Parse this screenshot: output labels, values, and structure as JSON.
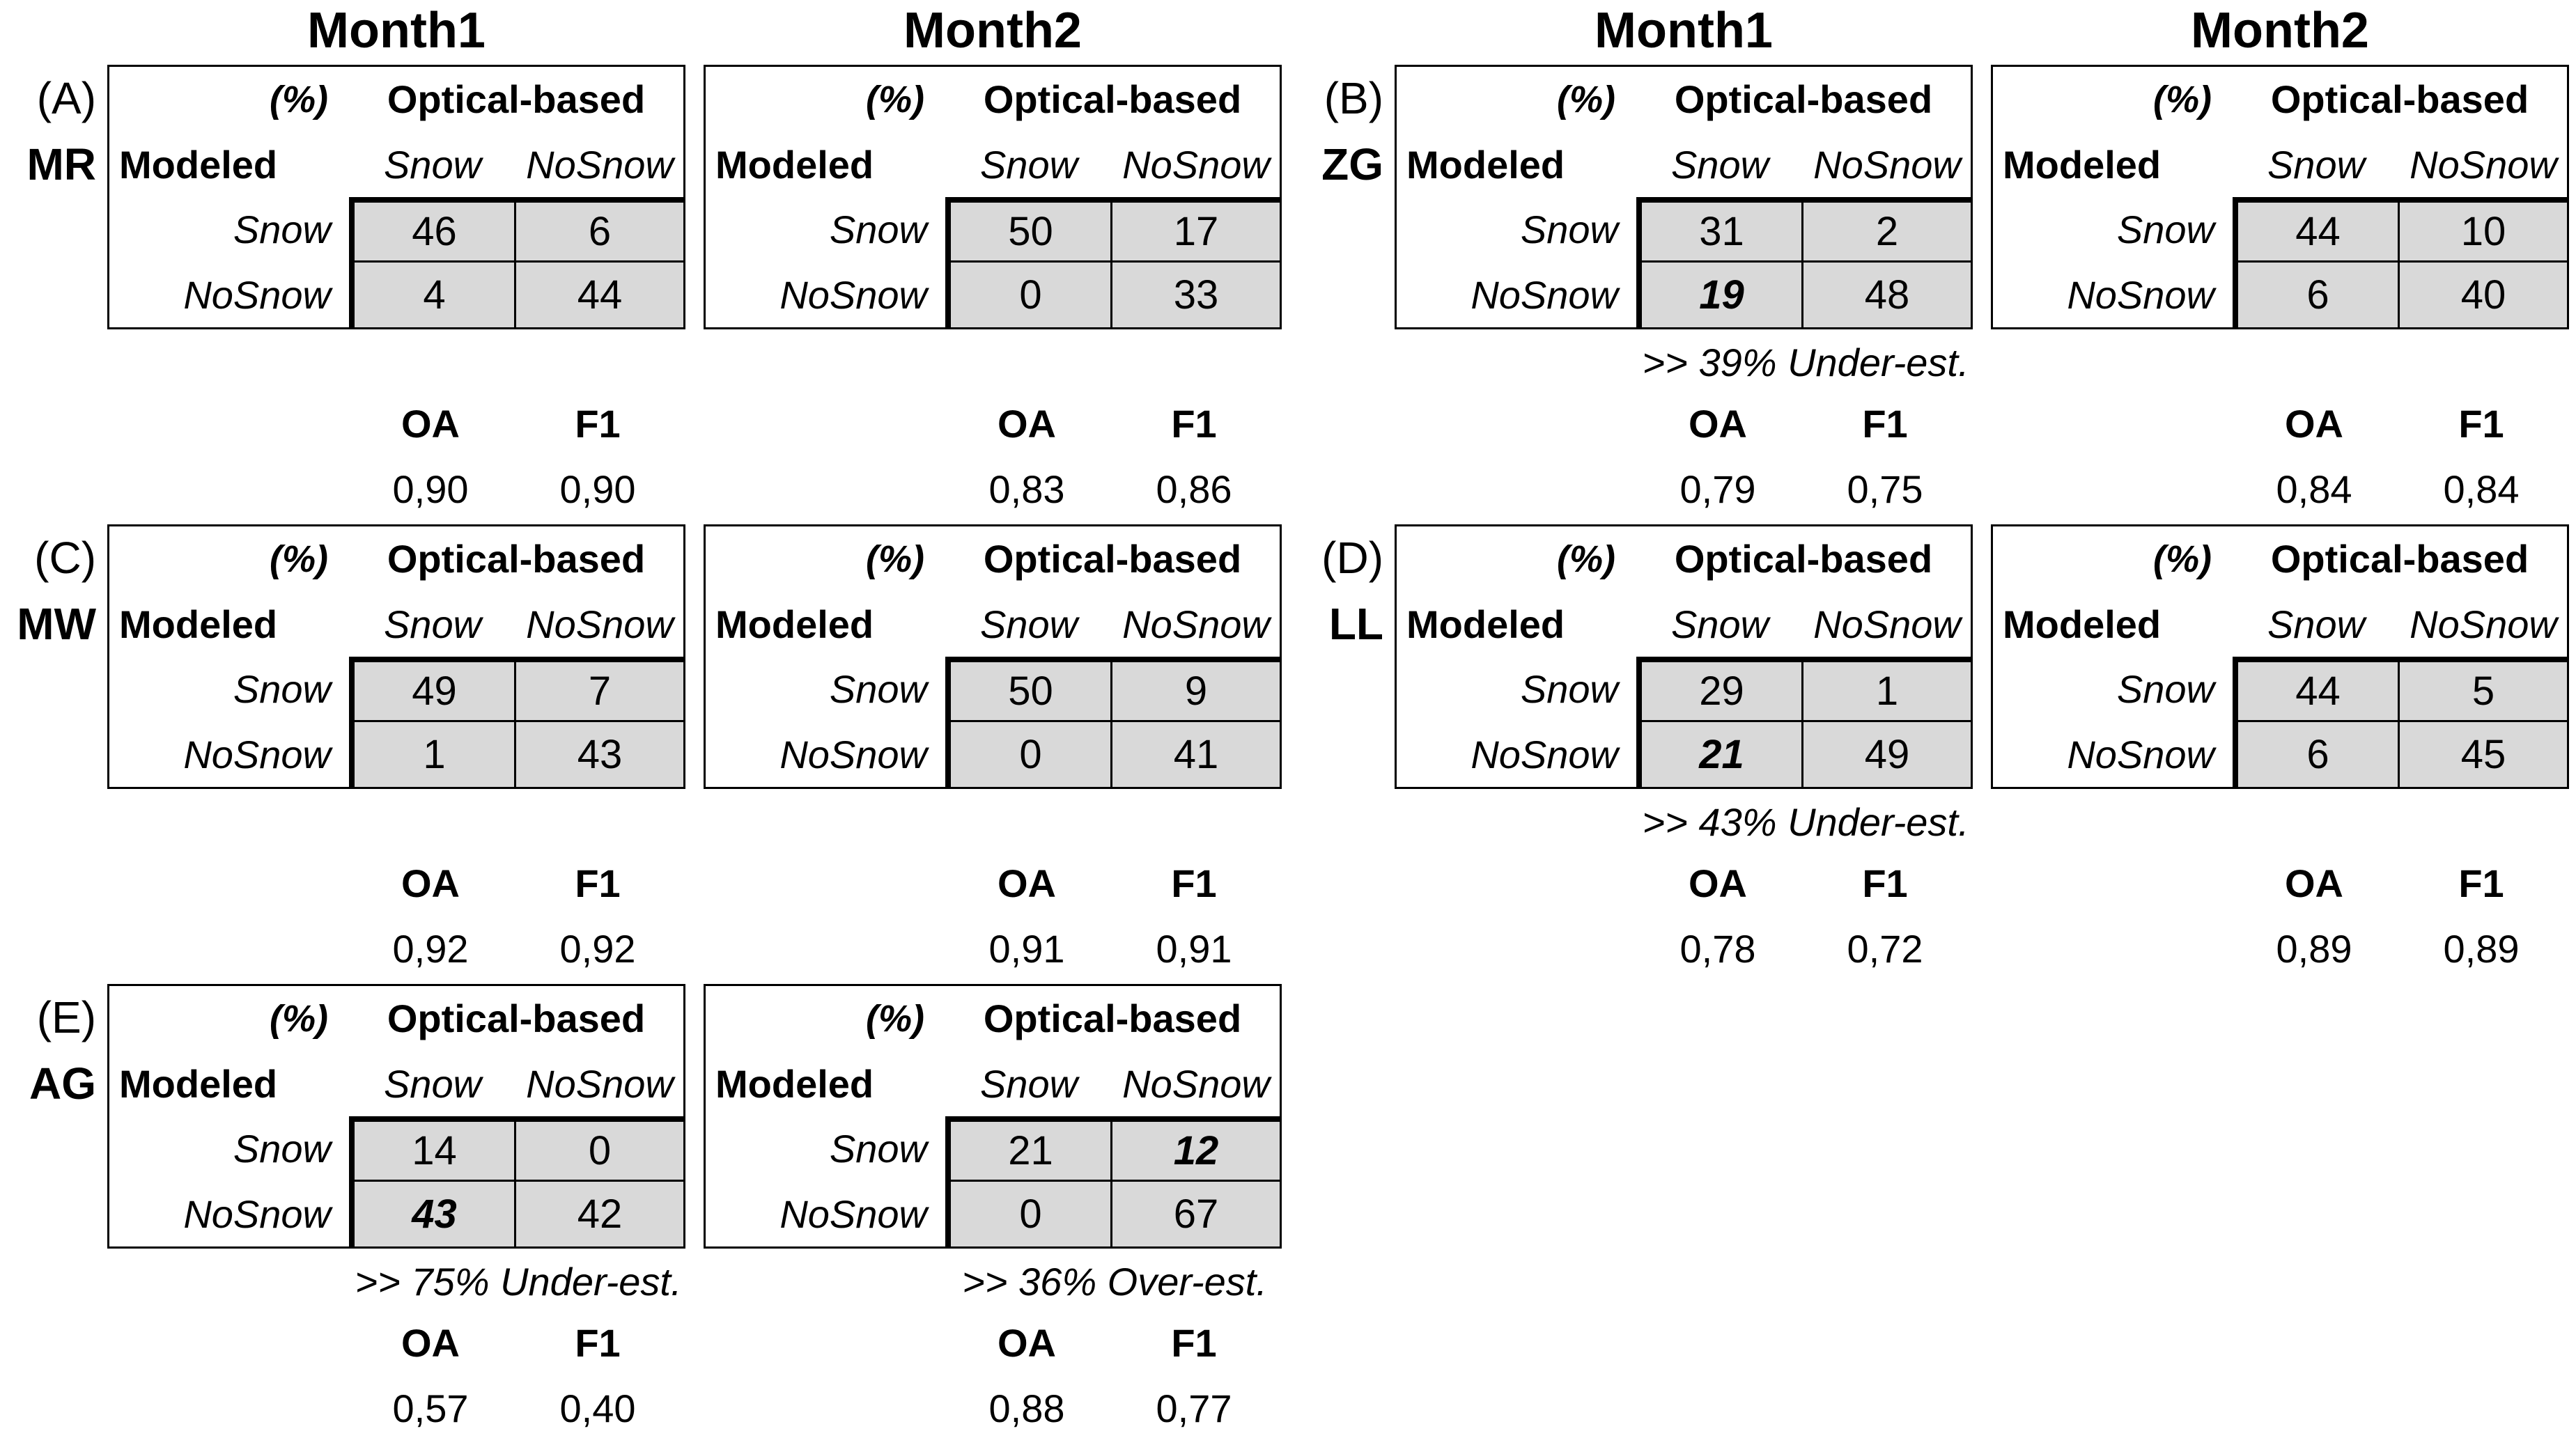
{
  "column_headers": {
    "month1": "Month1",
    "month2": "Month2"
  },
  "labels": {
    "percent": "(%)",
    "optical": "Optical-based",
    "modeled": "Modeled",
    "snow": "Snow",
    "nosnow": "NoSnow",
    "oa": "OA",
    "f1": "F1"
  },
  "colors": {
    "cell_fill": "#d9d9d9",
    "border": "#000000",
    "background": "#ffffff",
    "text": "#000000"
  },
  "panels": [
    {
      "id": "A",
      "letter": "(A)",
      "code": "MR",
      "column": "left",
      "months": [
        {
          "cells": [
            [
              "46",
              "6"
            ],
            [
              "4",
              "44"
            ]
          ],
          "bold": null,
          "annotation": "",
          "oa": "0,90",
          "f1": "0,90"
        },
        {
          "cells": [
            [
              "50",
              "17"
            ],
            [
              "0",
              "33"
            ]
          ],
          "bold": null,
          "annotation": "",
          "oa": "0,83",
          "f1": "0,86"
        }
      ]
    },
    {
      "id": "B",
      "letter": "(B)",
      "code": "ZG",
      "column": "right",
      "months": [
        {
          "cells": [
            [
              "31",
              "2"
            ],
            [
              "19",
              "48"
            ]
          ],
          "bold": [
            1,
            0
          ],
          "annotation": ">> 39% Under-est.",
          "oa": "0,79",
          "f1": "0,75"
        },
        {
          "cells": [
            [
              "44",
              "10"
            ],
            [
              "6",
              "40"
            ]
          ],
          "bold": null,
          "annotation": "",
          "oa": "0,84",
          "f1": "0,84"
        }
      ]
    },
    {
      "id": "C",
      "letter": "(C)",
      "code": "MW",
      "column": "left",
      "months": [
        {
          "cells": [
            [
              "49",
              "7"
            ],
            [
              "1",
              "43"
            ]
          ],
          "bold": null,
          "annotation": "",
          "oa": "0,92",
          "f1": "0,92"
        },
        {
          "cells": [
            [
              "50",
              "9"
            ],
            [
              "0",
              "41"
            ]
          ],
          "bold": null,
          "annotation": "",
          "oa": "0,91",
          "f1": "0,91"
        }
      ]
    },
    {
      "id": "D",
      "letter": "(D)",
      "code": "LL",
      "column": "right",
      "months": [
        {
          "cells": [
            [
              "29",
              "1"
            ],
            [
              "21",
              "49"
            ]
          ],
          "bold": [
            1,
            0
          ],
          "annotation": ">> 43% Under-est.",
          "oa": "0,78",
          "f1": "0,72"
        },
        {
          "cells": [
            [
              "44",
              "5"
            ],
            [
              "6",
              "45"
            ]
          ],
          "bold": null,
          "annotation": "",
          "oa": "0,89",
          "f1": "0,89"
        }
      ]
    },
    {
      "id": "E",
      "letter": "(E)",
      "code": "AG",
      "column": "left",
      "months": [
        {
          "cells": [
            [
              "14",
              "0"
            ],
            [
              "43",
              "42"
            ]
          ],
          "bold": [
            1,
            0
          ],
          "annotation": ">> 75% Under-est.",
          "oa": "0,57",
          "f1": "0,40"
        },
        {
          "cells": [
            [
              "21",
              "12"
            ],
            [
              "0",
              "67"
            ]
          ],
          "bold": [
            0,
            1
          ],
          "annotation": ">> 36% Over-est.",
          "oa": "0,88",
          "f1": "0,77"
        }
      ]
    }
  ]
}
